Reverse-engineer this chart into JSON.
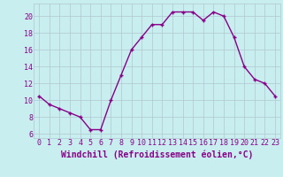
{
  "x": [
    0,
    1,
    2,
    3,
    4,
    5,
    6,
    7,
    8,
    9,
    10,
    11,
    12,
    13,
    14,
    15,
    16,
    17,
    18,
    19,
    20,
    21,
    22,
    23
  ],
  "y": [
    10.5,
    9.5,
    9.0,
    8.5,
    8.0,
    6.5,
    6.5,
    10.0,
    13.0,
    16.0,
    17.5,
    19.0,
    19.0,
    20.5,
    20.5,
    20.5,
    19.5,
    20.5,
    20.0,
    17.5,
    14.0,
    12.5,
    12.0,
    10.5
  ],
  "line_color": "#880088",
  "marker": "+",
  "marker_size": 3.5,
  "marker_linewidth": 1.0,
  "bg_color": "#c8eef0",
  "grid_color": "#b0c8d0",
  "xlabel": "Windchill (Refroidissement éolien,°C)",
  "xlabel_color": "#880088",
  "ylabel_ticks": [
    6,
    8,
    10,
    12,
    14,
    16,
    18,
    20
  ],
  "ylim": [
    5.5,
    21.5
  ],
  "xlim": [
    -0.5,
    23.5
  ],
  "xtick_labels": [
    "0",
    "1",
    "2",
    "3",
    "4",
    "5",
    "6",
    "7",
    "8",
    "9",
    "10",
    "11",
    "12",
    "13",
    "14",
    "15",
    "16",
    "17",
    "18",
    "19",
    "20",
    "21",
    "22",
    "23"
  ],
  "tick_color": "#880088",
  "label_fontsize": 6.0,
  "axis_label_fontsize": 7.0,
  "linewidth": 1.0
}
